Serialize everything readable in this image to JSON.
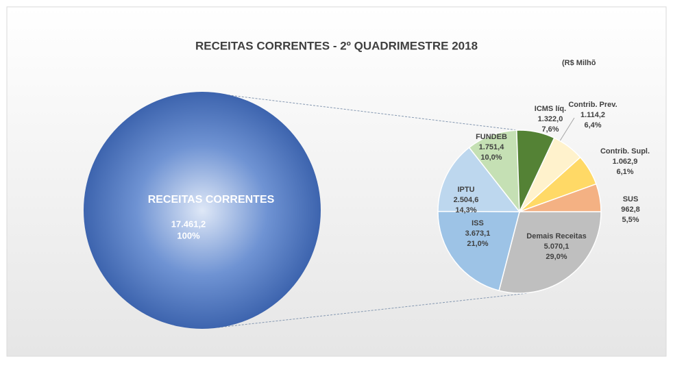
{
  "chart_data": {
    "type": "pie",
    "title": "RECEITAS CORRENTES - 2º QUADRIMESTRE 2018",
    "subtitle": "(R$ Milhõ",
    "total": {
      "name": "RECEITAS CORRENTES",
      "value": 17461.2,
      "value_label": "17.461,2",
      "percent": 100,
      "percent_label": "100%",
      "color": "#4472c4"
    },
    "series": {
      "categories": [
        "Demais Receitas",
        "ISS",
        "IPTU",
        "FUNDEB",
        "ICMS líq.",
        "Contrib. Prev.",
        "Contrib. Supl.",
        "SUS"
      ],
      "values": [
        5070.1,
        3673.1,
        2504.6,
        1751.4,
        1322.0,
        1114.2,
        1062.9,
        962.8
      ],
      "value_labels": [
        "5.070,1",
        "3.673,1",
        "2.504,6",
        "1.751,4",
        "1.322,0",
        "1.114,2",
        "1.062,9",
        "962,8"
      ],
      "percents": [
        29.0,
        21.0,
        14.3,
        10.0,
        7.6,
        6.4,
        6.1,
        5.5
      ],
      "percent_labels": [
        "29,0%",
        "21,0%",
        "14,3%",
        "10,0%",
        "7,6%",
        "6,4%",
        "6,1%",
        "5,5%"
      ],
      "colors": [
        "#bfbfbf",
        "#9dc3e6",
        "#bdd7ee",
        "#c5e0b4",
        "#548235",
        "#fff2cc",
        "#ffd966",
        "#f4b183"
      ]
    }
  }
}
